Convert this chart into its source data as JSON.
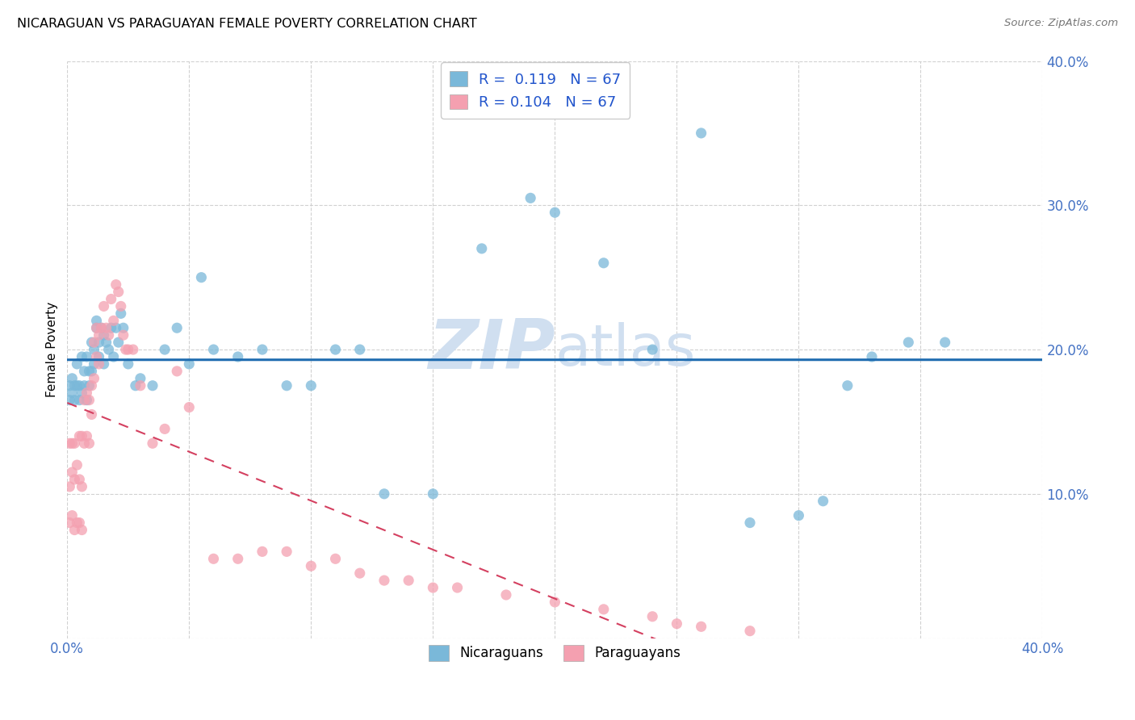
{
  "title": "NICARAGUAN VS PARAGUAYAN FEMALE POVERTY CORRELATION CHART",
  "source": "Source: ZipAtlas.com",
  "ylabel": "Female Poverty",
  "xlim": [
    0.0,
    0.4
  ],
  "ylim": [
    0.0,
    0.4
  ],
  "xticks": [
    0.0,
    0.05,
    0.1,
    0.15,
    0.2,
    0.25,
    0.3,
    0.35,
    0.4
  ],
  "yticks": [
    0.0,
    0.1,
    0.2,
    0.3,
    0.4
  ],
  "legend_r_nicaraguan": "0.119",
  "legend_n_nicaraguan": "67",
  "legend_r_paraguayan": "0.104",
  "legend_n_paraguayan": "67",
  "nicaraguan_color": "#7ab8d9",
  "paraguayan_color": "#f4a0b0",
  "trend_nicaraguan_color": "#1f6cb0",
  "trend_paraguayan_color": "#d44060",
  "tick_color": "#4472c4",
  "watermark_color": "#d0dff0",
  "nic_x": [
    0.001,
    0.001,
    0.002,
    0.002,
    0.003,
    0.003,
    0.004,
    0.004,
    0.005,
    0.005,
    0.006,
    0.006,
    0.007,
    0.007,
    0.008,
    0.008,
    0.009,
    0.009,
    0.01,
    0.01,
    0.011,
    0.011,
    0.012,
    0.012,
    0.013,
    0.013,
    0.014,
    0.015,
    0.015,
    0.016,
    0.017,
    0.018,
    0.019,
    0.02,
    0.021,
    0.022,
    0.023,
    0.025,
    0.028,
    0.03,
    0.035,
    0.04,
    0.045,
    0.05,
    0.055,
    0.06,
    0.07,
    0.08,
    0.09,
    0.1,
    0.11,
    0.12,
    0.13,
    0.15,
    0.17,
    0.19,
    0.2,
    0.22,
    0.24,
    0.26,
    0.28,
    0.3,
    0.31,
    0.32,
    0.33,
    0.345,
    0.36
  ],
  "nic_y": [
    0.175,
    0.165,
    0.18,
    0.17,
    0.175,
    0.165,
    0.175,
    0.19,
    0.175,
    0.165,
    0.195,
    0.17,
    0.185,
    0.175,
    0.195,
    0.165,
    0.185,
    0.175,
    0.205,
    0.185,
    0.2,
    0.19,
    0.215,
    0.22,
    0.205,
    0.195,
    0.215,
    0.21,
    0.19,
    0.205,
    0.2,
    0.215,
    0.195,
    0.215,
    0.205,
    0.225,
    0.215,
    0.19,
    0.175,
    0.18,
    0.175,
    0.2,
    0.215,
    0.19,
    0.25,
    0.2,
    0.195,
    0.2,
    0.175,
    0.175,
    0.2,
    0.2,
    0.1,
    0.1,
    0.27,
    0.305,
    0.295,
    0.26,
    0.2,
    0.35,
    0.08,
    0.085,
    0.095,
    0.175,
    0.195,
    0.205,
    0.205
  ],
  "par_x": [
    0.001,
    0.001,
    0.001,
    0.002,
    0.002,
    0.002,
    0.003,
    0.003,
    0.003,
    0.004,
    0.004,
    0.005,
    0.005,
    0.005,
    0.006,
    0.006,
    0.006,
    0.007,
    0.007,
    0.008,
    0.008,
    0.009,
    0.009,
    0.01,
    0.01,
    0.011,
    0.011,
    0.012,
    0.012,
    0.013,
    0.013,
    0.014,
    0.015,
    0.016,
    0.017,
    0.018,
    0.019,
    0.02,
    0.021,
    0.022,
    0.023,
    0.024,
    0.025,
    0.027,
    0.03,
    0.035,
    0.04,
    0.045,
    0.05,
    0.06,
    0.07,
    0.08,
    0.09,
    0.1,
    0.11,
    0.12,
    0.13,
    0.14,
    0.15,
    0.16,
    0.18,
    0.2,
    0.22,
    0.24,
    0.25,
    0.26,
    0.28
  ],
  "par_y": [
    0.135,
    0.105,
    0.08,
    0.135,
    0.115,
    0.085,
    0.135,
    0.11,
    0.075,
    0.12,
    0.08,
    0.14,
    0.11,
    0.08,
    0.14,
    0.105,
    0.075,
    0.165,
    0.135,
    0.17,
    0.14,
    0.165,
    0.135,
    0.175,
    0.155,
    0.205,
    0.18,
    0.215,
    0.195,
    0.21,
    0.19,
    0.215,
    0.23,
    0.215,
    0.21,
    0.235,
    0.22,
    0.245,
    0.24,
    0.23,
    0.21,
    0.2,
    0.2,
    0.2,
    0.175,
    0.135,
    0.145,
    0.185,
    0.16,
    0.055,
    0.055,
    0.06,
    0.06,
    0.05,
    0.055,
    0.045,
    0.04,
    0.04,
    0.035,
    0.035,
    0.03,
    0.025,
    0.02,
    0.015,
    0.01,
    0.008,
    0.005
  ]
}
